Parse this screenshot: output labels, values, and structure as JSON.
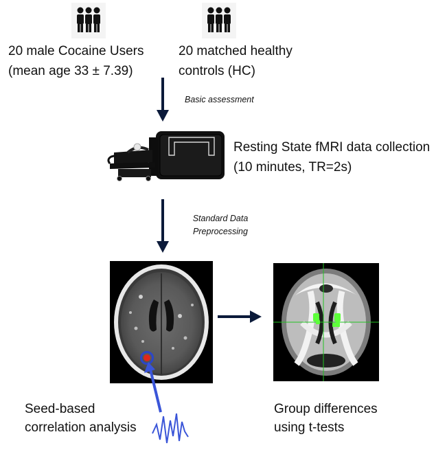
{
  "groups": {
    "left_label_line1": "20 male Cocaine Users",
    "left_label_line2": "(mean age 33 ± 7.39)",
    "right_label_line1": "20 matched healthy",
    "right_label_line2": "controls (HC)",
    "icon": "people-group-icon"
  },
  "steps": {
    "step1_label": "Basic assessment",
    "scanner_label_line1": "Resting State fMRI data collection",
    "scanner_label_line2": "(10 minutes, TR=2s)",
    "step2_label_line1": "Standard Data",
    "step2_label_line2": "Preprocessing"
  },
  "analysis": {
    "seed_line1": "Seed-based",
    "seed_line2": "correlation analysis",
    "group_line1": "Group differences",
    "group_line2": "using t-tests"
  },
  "colors": {
    "arrow": "#0b1a3a",
    "seed_marker": "#e0261b",
    "seed_ring": "#2b46c8",
    "signal": "#3a55d8",
    "crosshair": "#22c422",
    "cluster": "#5dff3a"
  }
}
